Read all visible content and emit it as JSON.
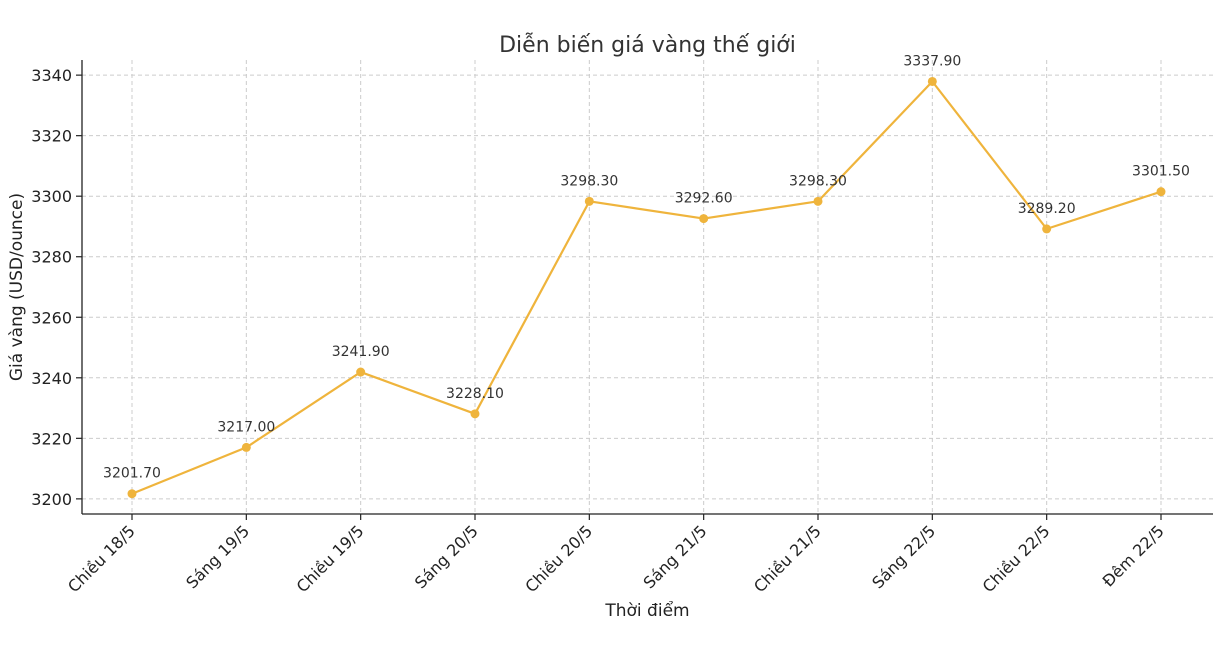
{
  "chart_data": {
    "type": "line",
    "title": "Diễn biến giá vàng thế giới",
    "xlabel": "Thời điểm",
    "ylabel": "Giá vàng (USD/ounce)",
    "categories": [
      "Chiều 18/5",
      "Sáng 19/5",
      "Chiều 19/5",
      "Sáng 20/5",
      "Chiều 20/5",
      "Sáng 21/5",
      "Chiều 21/5",
      "Sáng 22/5",
      "Chiều 22/5",
      "Đêm 22/5"
    ],
    "values": [
      3201.7,
      3217.0,
      3241.9,
      3228.1,
      3298.3,
      3292.6,
      3298.3,
      3337.9,
      3289.2,
      3301.5
    ],
    "data_labels": [
      "3201.70",
      "3217.00",
      "3241.90",
      "3228.10",
      "3298.30",
      "3292.60",
      "3298.30",
      "3337.90",
      "3289.20",
      "3301.50"
    ],
    "yticks": [
      3200,
      3220,
      3240,
      3260,
      3280,
      3300,
      3320,
      3340
    ],
    "ylim": [
      3195,
      3345
    ],
    "grid": true,
    "line_color": "#EFB43C"
  }
}
